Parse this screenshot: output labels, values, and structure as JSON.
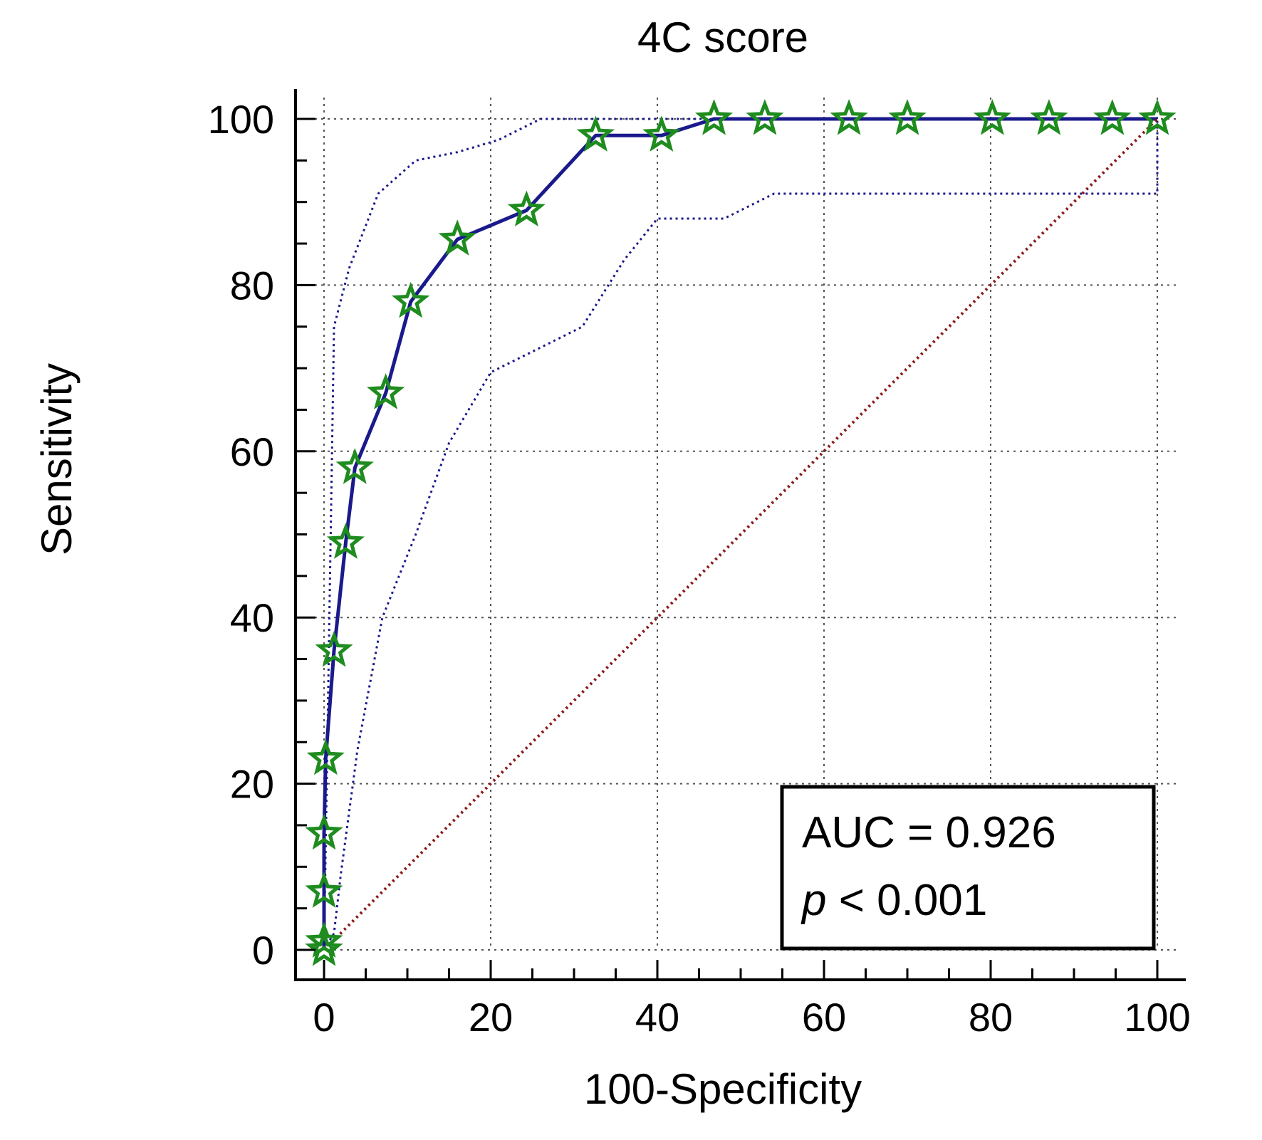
{
  "chart_data": {
    "type": "line",
    "title": "4C score",
    "xlabel": "100-Specificity",
    "ylabel": "Sensitivity",
    "xlim": [
      0,
      100
    ],
    "ylim": [
      0,
      100
    ],
    "xticks": [
      "0",
      "20",
      "40",
      "60",
      "80",
      "100"
    ],
    "yticks": [
      "0",
      "20",
      "40",
      "60",
      "80",
      "100"
    ],
    "grid": true,
    "series": [
      {
        "role": "roc",
        "color": "#1a1a8c",
        "marker_color": "#1e8c1e",
        "x": [
          0,
          0,
          0,
          0,
          0.2,
          1.2,
          2.6,
          3.7,
          7.4,
          10.4,
          16,
          24.3,
          32.6,
          40.5,
          46.8,
          52.9,
          63,
          70,
          80.2,
          87,
          94.6,
          100
        ],
        "y": [
          0,
          1,
          7,
          14,
          23,
          36,
          49,
          58,
          67,
          78,
          85.5,
          89,
          98,
          98,
          100,
          100,
          100,
          100,
          100,
          100,
          100,
          100
        ]
      },
      {
        "role": "upper-ci",
        "color": "#1a1a8c",
        "x": [
          0,
          1.2,
          3,
          6.5,
          11,
          16,
          21,
          26,
          31,
          40,
          50,
          60,
          80,
          100
        ],
        "y": [
          0,
          75,
          82,
          91,
          95,
          96,
          97.5,
          100,
          100,
          100,
          100,
          100,
          100,
          100
        ]
      },
      {
        "role": "lower-ci",
        "color": "#1a1a8c",
        "x": [
          0,
          1.2,
          2,
          4,
          7,
          11,
          15,
          20,
          25,
          31,
          36,
          40,
          48,
          54,
          60,
          80,
          100,
          100
        ],
        "y": [
          0,
          2,
          9,
          24,
          40,
          50,
          61,
          69.5,
          72,
          75,
          83,
          88,
          88,
          91,
          91,
          91,
          91,
          100
        ]
      },
      {
        "role": "reference",
        "color": "#8b1a1a",
        "x": [
          0,
          100
        ],
        "y": [
          0,
          100
        ]
      }
    ],
    "annotation": {
      "auc_text": "AUC = 0.926",
      "p_symbol": "p",
      "p_rest": " < 0.001",
      "placement": "bottom-right"
    }
  }
}
